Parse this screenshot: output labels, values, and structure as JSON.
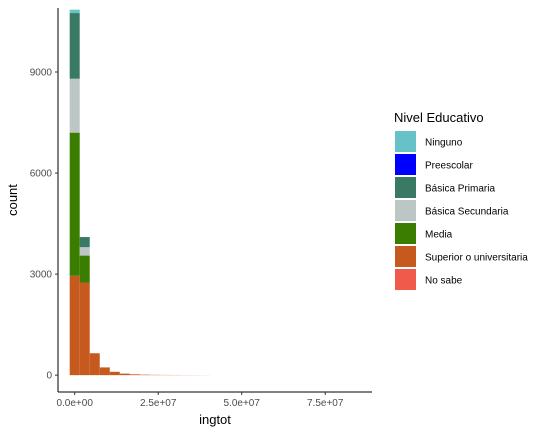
{
  "chart_data": {
    "type": "bar",
    "stacked": true,
    "xlabel": "ingtot",
    "ylabel": "count",
    "xlim": [
      -5000000,
      89000000
    ],
    "ylim": [
      -500,
      10900
    ],
    "bin_width": 3000000,
    "x_ticks": [
      0,
      25000000,
      50000000,
      75000000
    ],
    "x_tick_labels": [
      "0.0e+00",
      "2.5e+07",
      "5.0e+07",
      "7.5e+07"
    ],
    "y_ticks": [
      0,
      3000,
      6000,
      9000
    ],
    "y_tick_labels": [
      "0",
      "3000",
      "6000",
      "9000"
    ],
    "grid": false,
    "legend": {
      "title": "Nivel Educativo",
      "position": "right",
      "entries": [
        {
          "label": "Ninguno",
          "color": "#66C2C6"
        },
        {
          "label": "Preescolar",
          "color": "#0000FF"
        },
        {
          "label": "Básica Primaria",
          "color": "#3A7A65"
        },
        {
          "label": "Básica Secundaria",
          "color": "#BCC6C4"
        },
        {
          "label": "Media",
          "color": "#3A7D00"
        },
        {
          "label": "Superior o universitaria",
          "color": "#C65A1E"
        },
        {
          "label": "No sabe",
          "color": "#F05A4A"
        }
      ]
    },
    "bins": [
      {
        "x0": -1500000,
        "x1": 1500000,
        "stack": [
          {
            "series": "Superior o universitaria",
            "value": 2950
          },
          {
            "series": "Media",
            "value": 4250
          },
          {
            "series": "Básica Secundaria",
            "value": 1600
          },
          {
            "series": "Básica Primaria",
            "value": 1950
          },
          {
            "series": "Ninguno",
            "value": 100
          }
        ]
      },
      {
        "x0": 1500000,
        "x1": 4500000,
        "stack": [
          {
            "series": "Superior o universitaria",
            "value": 2750
          },
          {
            "series": "Media",
            "value": 800
          },
          {
            "series": "Básica Secundaria",
            "value": 250
          },
          {
            "series": "Básica Primaria",
            "value": 300
          }
        ]
      },
      {
        "x0": 4500000,
        "x1": 7500000,
        "stack": [
          {
            "series": "Superior o universitaria",
            "value": 650
          }
        ]
      },
      {
        "x0": 7500000,
        "x1": 10500000,
        "stack": [
          {
            "series": "Superior o universitaria",
            "value": 230
          }
        ]
      },
      {
        "x0": 10500000,
        "x1": 13500000,
        "stack": [
          {
            "series": "Superior o universitaria",
            "value": 100
          }
        ]
      },
      {
        "x0": 13500000,
        "x1": 16500000,
        "stack": [
          {
            "series": "Superior o universitaria",
            "value": 45
          }
        ]
      },
      {
        "x0": 16500000,
        "x1": 19500000,
        "stack": [
          {
            "series": "Superior o universitaria",
            "value": 25
          }
        ]
      },
      {
        "x0": 19500000,
        "x1": 22500000,
        "stack": [
          {
            "series": "Superior o universitaria",
            "value": 15
          }
        ]
      },
      {
        "x0": 22500000,
        "x1": 25500000,
        "stack": [
          {
            "series": "Superior o universitaria",
            "value": 10
          }
        ]
      },
      {
        "x0": 25500000,
        "x1": 28500000,
        "stack": [
          {
            "series": "Superior o universitaria",
            "value": 7
          }
        ]
      },
      {
        "x0": 28500000,
        "x1": 31500000,
        "stack": [
          {
            "series": "Superior o universitaria",
            "value": 5
          }
        ]
      },
      {
        "x0": 31500000,
        "x1": 34500000,
        "stack": [
          {
            "series": "Superior o universitaria",
            "value": 4
          }
        ]
      },
      {
        "x0": 34500000,
        "x1": 37500000,
        "stack": [
          {
            "series": "Superior o universitaria",
            "value": 3
          }
        ]
      },
      {
        "x0": 37500000,
        "x1": 40500000,
        "stack": [
          {
            "series": "Superior o universitaria",
            "value": 2
          }
        ]
      }
    ]
  }
}
